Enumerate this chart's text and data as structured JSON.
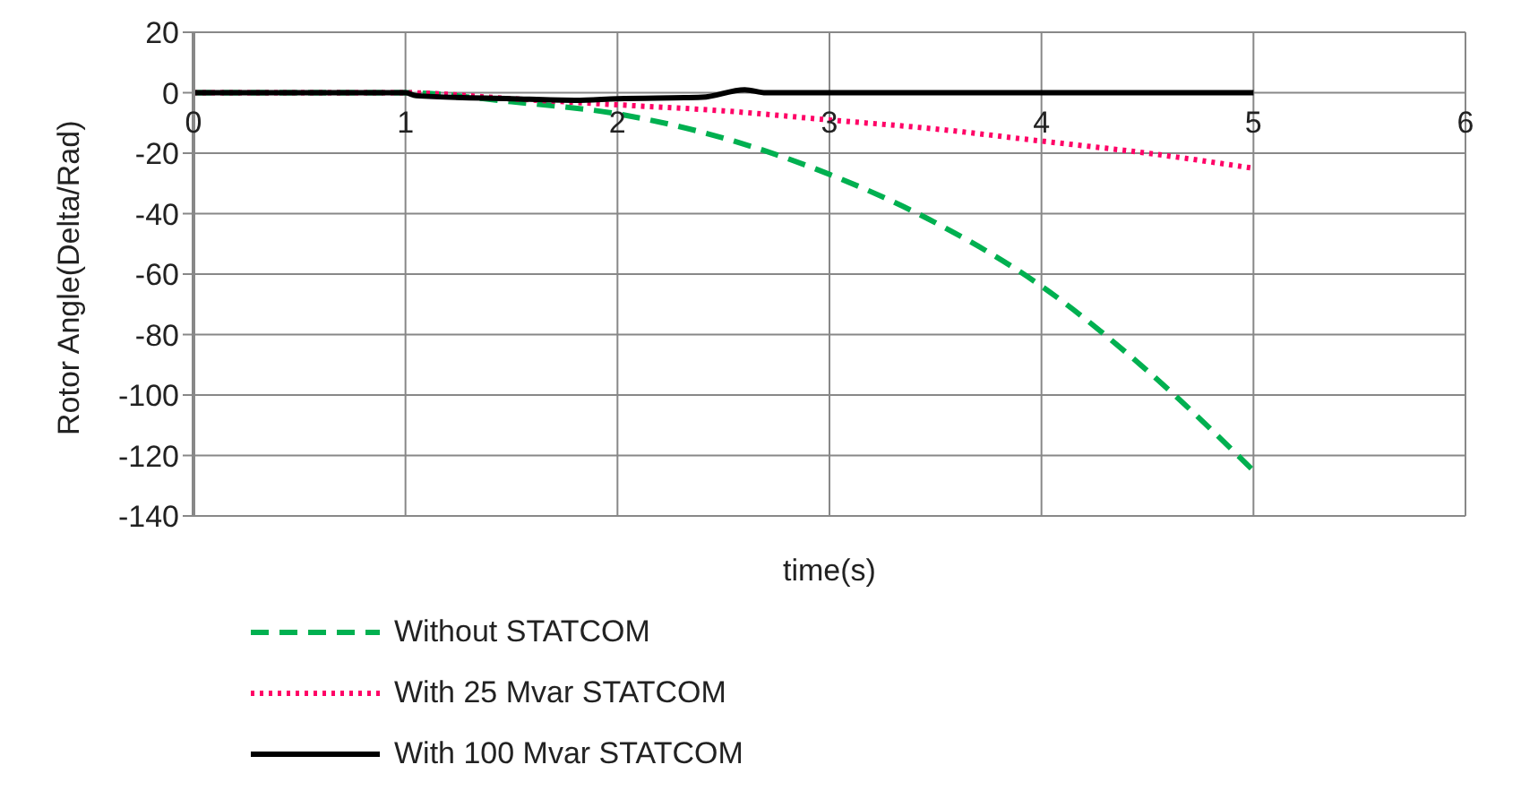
{
  "chart_data": {
    "type": "line",
    "xlabel": "time(s)",
    "ylabel": "Rotor Angle(Delta/Rad)",
    "xlim": [
      0,
      6
    ],
    "xticks": [
      0,
      1,
      2,
      3,
      4,
      5,
      6
    ],
    "ylim": [
      -140,
      20
    ],
    "yticks": [
      -140,
      -120,
      -100,
      -80,
      -60,
      -40,
      -20,
      0,
      20
    ],
    "grid": true,
    "legend": "bottom",
    "marker": "none",
    "series": [
      {
        "name": "Without STATCOM",
        "color": "#00b050",
        "line_style": "dashed",
        "x": [
          0,
          0.5,
          1,
          1.5,
          2,
          2.5,
          3,
          3.5,
          4,
          4.5,
          5
        ],
        "values": [
          0,
          0,
          0,
          -3,
          -7,
          -15,
          -27,
          -43,
          -64,
          -92,
          -125
        ]
      },
      {
        "name": "With 25 Mvar STATCOM",
        "color": "#ff0066",
        "line_style": "dotted",
        "x": [
          0,
          0.5,
          1,
          1.5,
          2,
          2.5,
          3,
          3.5,
          4,
          4.5,
          5
        ],
        "values": [
          0,
          0,
          0,
          -2,
          -4,
          -6,
          -9,
          -12,
          -16,
          -20,
          -25
        ]
      },
      {
        "name": "With 100 Mvar STATCOM",
        "color": "#000000",
        "line_style": "solid",
        "x": [
          0,
          0.5,
          1,
          1.05,
          1.5,
          1.8,
          2,
          2.4,
          2.6,
          2.7,
          3,
          4,
          5
        ],
        "values": [
          0,
          0,
          0,
          -1,
          -2,
          -2.5,
          -2,
          -1.5,
          1,
          0,
          0,
          0,
          0
        ]
      }
    ]
  }
}
